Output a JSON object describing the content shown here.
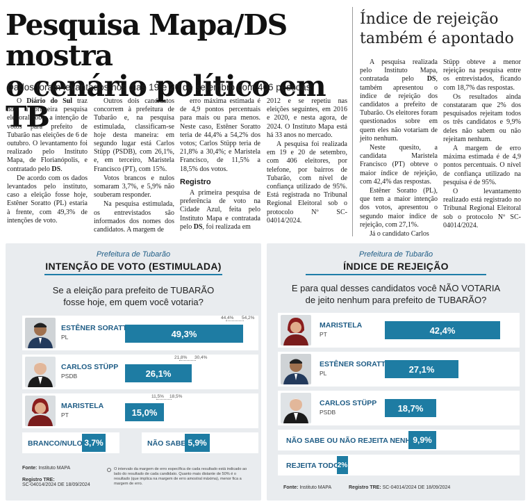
{
  "article": {
    "headline_line1": "Pesquisa Mapa/DS mostra",
    "headline_line2": "o cenário político em TB",
    "subhead": "Dados foram levantados nos dias 19 e 20 de setembro com 406 pessoas",
    "col1": {
      "p1a": "O ",
      "p1b": "Diário do Sul",
      "p1c": " traz hoje a primeira pesquisa eleitoral sobre a intenção de votos para prefeito de Tubarão nas eleições de 6 de outubro. O levantamento foi realizado pelo Instituto Mapa, de Florianópolis, e contratado pelo ",
      "p1d": "DS",
      "p1e": ".",
      "p2": "De acordo com os dados levantados pelo instituto, caso a eleição fosse hoje, Estêner Soratto (PL) estaria à frente, com 49,3% de intenções de voto."
    },
    "col2": {
      "p1": "Outros dois candidatos concorrem à prefeitura de Tubarão e, na pesquisa estimulada, classificam-se hoje desta maneira: em segundo lugar está Carlos Stüpp (PSDB), com 26,1%, e, em terceiro, Maristela Francisco (PT), com 15%.",
      "p2": "Votos brancos e nulos somaram 3,7%, e 5,9% não souberam responder.",
      "p3": "Na pesquisa estimulada, os entrevistados são informados dos nomes dos candidatos. A margem de"
    },
    "col3": {
      "p1": "erro máxima estimada é de 4,9 pontos percentuais para mais ou para menos. Neste caso, Estêner Soratto teria de 44,4% a 54,2% dos votos; Carlos Stüpp teria de 21,8% a 30,4%; e Maristela Francisco, de 11,5% a 18,5% dos votos.",
      "heading": "Registro",
      "p2a": "A primeira pesquisa de preferência de voto na Cidade Azul, feita pelo Instituto Mapa e contratada pelo ",
      "p2b": "DS",
      "p2c": ", foi realizada em"
    },
    "col4": {
      "p1": "2012 e se repetiu nas eleições seguintes, em 2016 e 2020, e nesta agora, de 2024. O Instituto Mapa está há 33 anos no mercado.",
      "p2": "A pesquisa foi realizada em 19 e 20 de setembro, com 406 eleitores, por telefone, por bairros de Tubarão, com nível de confiança utilizado de 95%. Está registrada no Tribunal Regional Eleitoral sob o protocolo Nº SC-04014/2024."
    }
  },
  "sidebar": {
    "title_line1": "Índice de rejeição",
    "title_line2": "também é apontado",
    "col1": {
      "p1a": "A pesquisa realizada pelo Instituto Mapa, contratada pelo ",
      "p1b": "DS",
      "p1c": ", também apresentou o índice de rejeição dos candidatos a prefeito de Tubarão. Os eleitores foram questionados sobre em quem eles não votariam de jeito nenhum.",
      "p2": "Neste quesito, a candidata Maristela Francisco (PT) obteve o maior índice de rejeição, com 42,4% das respostas.",
      "p3": "Estêner Soratto (PL), que tem a maior intenção dos votos, apresentou o segundo maior índice de rejeição, com 27,1%.",
      "p4": "Já o candidato Carlos"
    },
    "col2": {
      "p1": "Stüpp obteve a menor rejeição na pesquisa entre os entrevistados, ficando com 18,7% das respostas.",
      "p2": "Os resultados ainda constataram que 2% dos pesquisados rejeitam todos os três candidatos e 9,9% deles não sabem ou não rejeitam nenhum.",
      "p3": "A margem de erro máxima estimada é de 4,9 pontos percentuais. O nível de confiança utilizado na pesquisa é de 95%.",
      "p4": "O levantamento realizado está registrado no Tribunal Regional Eleitoral sob o protocolo Nº SC-04014/2024."
    }
  },
  "panel_left": {
    "header": "Prefeitura de Tubarão",
    "title": "INTENÇÃO DE VOTO (ESTIMULADA)",
    "question_line1": "Se a eleição para prefeito de TUBARÃO",
    "question_line2": "fosse hoje, em quem você votaria?",
    "candidates": [
      {
        "name": "ESTÊNER SORATTO",
        "party": "PL",
        "value_label": "49,3%",
        "low_label": "44,4%",
        "high_label": "54,2%"
      },
      {
        "name": "CARLOS STÜPP",
        "party": "PSDB",
        "value_label": "26,1%",
        "low_label": "21,8%",
        "high_label": "30,4%"
      },
      {
        "name": "MARISTELA",
        "party": "PT",
        "value_label": "15,0%",
        "low_label": "11,5%",
        "high_label": "18,5%"
      }
    ],
    "branco_label": "BRANCO/NULO",
    "branco_value": "3,7%",
    "naosabe_label": "NÃO SABE",
    "naosabe_value": "5,9%",
    "fonte_label": "Fonte:",
    "fonte_value": "Instituto MAPA",
    "registro_label": "Registro TRE:",
    "registro_value": "SC-04014/2024 DE 18/09/2024",
    "note": "O intervalo da margem de erro específica de cada resultado está indicado ao lado do resultado de cada candidato. Quanto mais distante de 50% é o resultado (que implica na margem de erro amostral máxima), menor fica a margem de erro."
  },
  "panel_right": {
    "header": "Prefeitura de Tubarão",
    "title": "ÍNDICE DE REJEIÇÃO",
    "question_line1": "E para qual desses candidatos você NÃO VOTARIA",
    "question_line2": "de jeito nenhum para prefeito de TUBARÃO?",
    "candidates": [
      {
        "name": "MARISTELA",
        "party": "PT",
        "value_label": "42,4%"
      },
      {
        "name": "ESTÊNER SORATTO",
        "party": "PL",
        "value_label": "27,1%"
      },
      {
        "name": "CARLOS STÜPP",
        "party": "PSDB",
        "value_label": "18,7%"
      }
    ],
    "naosabe_label": "NÃO SABE OU NÃO REJEITA NENHUM",
    "naosabe_value": "9,9%",
    "todos_label": "REJEITA TODOS",
    "todos_value": "2%",
    "fonte_label": "Fonte:",
    "fonte_value": "Instituto MAPA",
    "registro_label": "Registro TRE:",
    "registro_value": "SC-04014/2024 DE 18/09/2024"
  },
  "colors": {
    "bar": "#1e7ca3",
    "accent_text": "#1e5c85",
    "panel_bg": "#e9ecef"
  },
  "chart_data": [
    {
      "type": "bar",
      "title": "INTENÇÃO DE VOTO (ESTIMULADA)",
      "categories": [
        "ESTÊNER SORATTO",
        "CARLOS STÜPP",
        "MARISTELA",
        "BRANCO/NULO",
        "NÃO SABE"
      ],
      "values": [
        49.3,
        26.1,
        15.0,
        3.7,
        5.9
      ],
      "error_ranges": [
        [
          44.4,
          54.2
        ],
        [
          21.8,
          30.4
        ],
        [
          11.5,
          18.5
        ]
      ]
    },
    {
      "type": "bar",
      "title": "ÍNDICE DE REJEIÇÃO",
      "categories": [
        "MARISTELA",
        "ESTÊNER SORATTO",
        "CARLOS STÜPP",
        "NÃO SABE OU NÃO REJEITA NENHUM",
        "REJEITA TODOS"
      ],
      "values": [
        42.4,
        27.1,
        18.7,
        9.9,
        2.0
      ]
    }
  ]
}
